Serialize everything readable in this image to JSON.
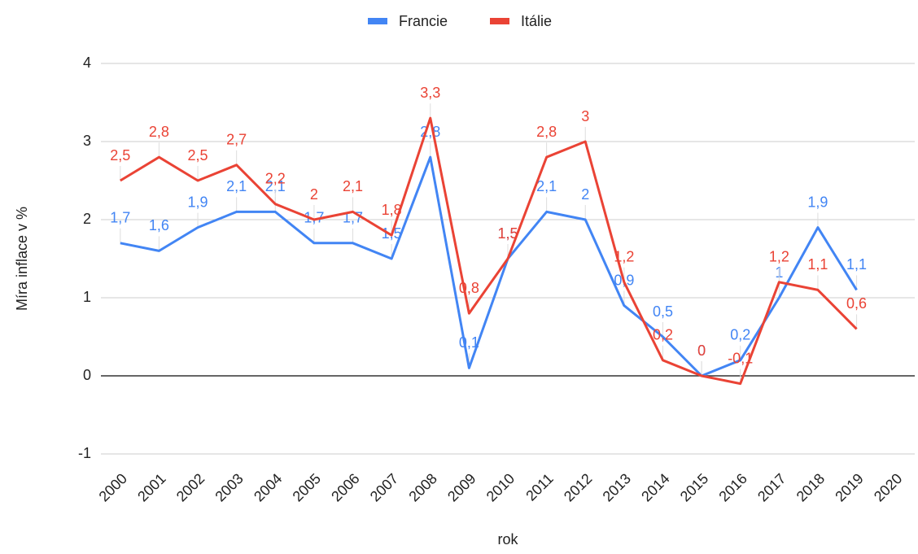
{
  "chart_data": {
    "type": "line",
    "y_label": "Míra inflace v %",
    "x_label": "rok",
    "categories": [
      "2000",
      "2001",
      "2002",
      "2003",
      "2004",
      "2005",
      "2006",
      "2007",
      "2008",
      "2009",
      "2010",
      "2011",
      "2012",
      "2013",
      "2014",
      "2015",
      "2016",
      "2017",
      "2018",
      "2019",
      "2020"
    ],
    "series": [
      {
        "name": "Francie",
        "color": "#4285f4",
        "values": [
          1.7,
          1.6,
          1.9,
          2.1,
          2.1,
          1.7,
          1.7,
          1.5,
          2.8,
          0.1,
          1.5,
          2.1,
          2.0,
          0.9,
          0.5,
          0,
          0.2,
          1,
          1.9,
          1.1,
          null
        ],
        "value_labels": [
          "1,7",
          "1,6",
          "1,9",
          "2,1",
          "2,1",
          "1,7",
          "1,7",
          "1,5",
          "2,8",
          "0,1",
          "1,5",
          "2,1",
          "2",
          "0,9",
          "0,5",
          "0",
          "0,2",
          "1",
          "1,9",
          "1,1",
          null
        ]
      },
      {
        "name": "Itálie",
        "color": "#ea4335",
        "values": [
          2.5,
          2.8,
          2.5,
          2.7,
          2.2,
          2.0,
          2.1,
          1.8,
          3.3,
          0.8,
          1.5,
          2.8,
          3.0,
          1.2,
          0.2,
          0,
          -0.1,
          1.2,
          1.1,
          0.6,
          null
        ],
        "value_labels": [
          "2,5",
          "2,8",
          "2,5",
          "2,7",
          "2,2",
          "2",
          "2,1",
          "1,8",
          "3,3",
          "0,8",
          "1,5",
          "2,8",
          "3",
          "1,2",
          "0,2",
          "0",
          "-0,1",
          "1,2",
          "1,1",
          "0,6",
          null
        ]
      }
    ],
    "ylim": [
      -1,
      4
    ],
    "yticks": [
      -1,
      0,
      1,
      2,
      3,
      4
    ],
    "grid": true,
    "legend": "top"
  }
}
